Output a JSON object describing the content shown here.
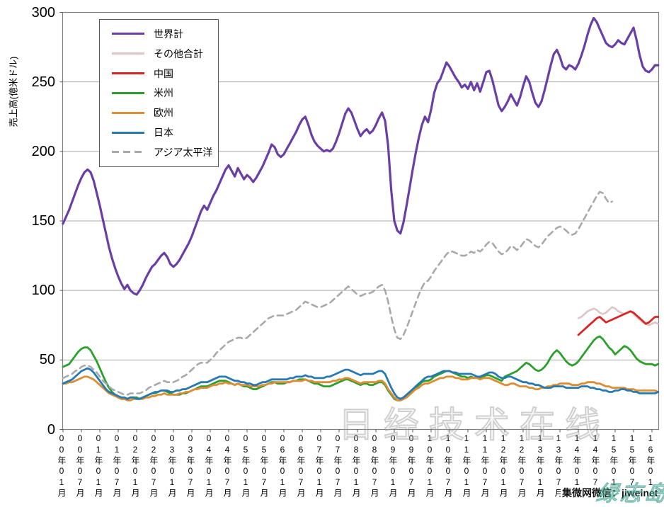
{
  "page": {
    "caption": "集微网微信：jiweinet",
    "watermark_main": "日经技术在线",
    "watermark_corner": "绿志岛"
  },
  "colors": {
    "spine": "#808080",
    "gridline": "#a8a8a8",
    "tick": "#595959",
    "world": "#6A3FA5",
    "others_total": "#DCC6C6",
    "china": "#DC2423",
    "americas": "#2CA02C",
    "europe": "#DD8D33",
    "japan": "#2679B2",
    "asia_pacific": "#A9A9A9"
  },
  "chart_data": {
    "type": "line",
    "title": "",
    "xlabel": "",
    "ylabel": "売上高(億米ドル)",
    "ylim": [
      0,
      300
    ],
    "y_ticks": [
      0,
      50,
      100,
      150,
      200,
      250,
      300
    ],
    "grid": "horizontal",
    "legend_position": "top-left",
    "x_unit": "month",
    "x_start": "2000-01",
    "months_per_tick": 6,
    "x_tick_labels": [
      "00年01月",
      "00年07月",
      "01年01月",
      "01年07月",
      "02年01月",
      "02年07月",
      "03年01月",
      "03年07月",
      "04年01月",
      "04年07月",
      "05年01月",
      "05年07月",
      "06年01月",
      "06年07月",
      "07年01月",
      "07年07月",
      "08年01月",
      "08年07月",
      "09年01月",
      "09年07月",
      "10年01月",
      "10年07月",
      "11年01月",
      "11年07月",
      "12年01月",
      "12年07月",
      "13年01月",
      "13年07月",
      "14年01月",
      "14年07月",
      "15年01月",
      "15年07月",
      "16年01月"
    ],
    "series": [
      {
        "id": "world",
        "label": "世界計",
        "color_key": "world",
        "width": 3.2,
        "dashed": false,
        "start_month": 0,
        "values": [
          148,
          153,
          158,
          164,
          170,
          176,
          181,
          185,
          187,
          185,
          179,
          170,
          161,
          151,
          141,
          131,
          123,
          116,
          110,
          105,
          101,
          104,
          100,
          98,
          97,
          100,
          104,
          109,
          113,
          117,
          119,
          122,
          125,
          127,
          124,
          119,
          117,
          119,
          122,
          126,
          130,
          134,
          139,
          145,
          151,
          157,
          161,
          158,
          163,
          168,
          172,
          177,
          182,
          187,
          190,
          186,
          182,
          188,
          184,
          180,
          183,
          181,
          178,
          181,
          185,
          189,
          194,
          199,
          205,
          203,
          198,
          196,
          198,
          202,
          206,
          210,
          214,
          219,
          223,
          225,
          219,
          212,
          207,
          204,
          202,
          200,
          201,
          200,
          202,
          207,
          213,
          220,
          227,
          231,
          228,
          222,
          216,
          211,
          214,
          216,
          213,
          215,
          219,
          224,
          228,
          222,
          204,
          172,
          150,
          143,
          141,
          149,
          161,
          174,
          187,
          199,
          210,
          219,
          225,
          221,
          230,
          242,
          249,
          252,
          258,
          264,
          261,
          257,
          253,
          250,
          246,
          248,
          245,
          250,
          244,
          249,
          243,
          250,
          257,
          258,
          251,
          242,
          233,
          229,
          232,
          236,
          241,
          237,
          233,
          239,
          247,
          254,
          250,
          242,
          235,
          232,
          236,
          244,
          253,
          262,
          270,
          273,
          268,
          261,
          259,
          262,
          261,
          259,
          263,
          269,
          276,
          284,
          291,
          296,
          293,
          288,
          283,
          278,
          276,
          275,
          277,
          280,
          278,
          277,
          281,
          285,
          289,
          280,
          269,
          261,
          258,
          257,
          259,
          262,
          262
        ]
      },
      {
        "id": "others-total",
        "label": "その他合計",
        "color_key": "others_total",
        "width": 2.6,
        "dashed": false,
        "start_month": 168,
        "values": [
          80,
          81,
          83,
          85,
          86,
          87,
          86,
          84,
          83,
          84,
          86,
          88,
          87,
          85,
          84,
          83,
          84,
          85,
          83,
          81,
          79,
          77,
          76,
          75,
          76,
          77,
          76
        ]
      },
      {
        "id": "china",
        "label": "中国",
        "color_key": "china",
        "width": 2.8,
        "dashed": false,
        "start_month": 168,
        "values": [
          68,
          70,
          72,
          74,
          76,
          78,
          80,
          81,
          79,
          77,
          78,
          79,
          80,
          81,
          82,
          83,
          84,
          85,
          84,
          82,
          80,
          78,
          76,
          77,
          79,
          81,
          81
        ]
      },
      {
        "id": "americas",
        "label": "米州",
        "color_key": "americas",
        "width": 2.8,
        "dashed": false,
        "start_month": 0,
        "values": [
          45,
          46,
          47,
          50,
          53,
          56,
          58,
          59,
          59,
          57,
          53,
          49,
          44,
          39,
          34,
          30,
          27,
          25,
          23,
          22,
          22,
          22,
          23,
          23,
          23,
          22,
          23,
          24,
          25,
          26,
          26,
          27,
          28,
          28,
          27,
          26,
          25,
          25,
          25,
          26,
          26,
          27,
          28,
          29,
          30,
          31,
          31,
          31,
          32,
          33,
          34,
          35,
          35,
          35,
          34,
          33,
          32,
          33,
          32,
          31,
          31,
          30,
          29,
          29,
          30,
          31,
          32,
          33,
          34,
          34,
          33,
          33,
          33,
          34,
          34,
          35,
          35,
          36,
          36,
          36,
          35,
          34,
          33,
          33,
          32,
          31,
          31,
          31,
          32,
          33,
          34,
          35,
          36,
          36,
          35,
          34,
          33,
          32,
          33,
          33,
          32,
          32,
          33,
          34,
          34,
          32,
          28,
          25,
          22,
          21,
          21,
          22,
          24,
          26,
          28,
          30,
          32,
          34,
          35,
          35,
          36,
          38,
          39,
          40,
          41,
          42,
          42,
          41,
          40,
          39,
          38,
          38,
          37,
          38,
          37,
          38,
          37,
          38,
          39,
          39,
          38,
          37,
          36,
          35,
          38,
          39,
          40,
          41,
          42,
          44,
          46,
          48,
          47,
          45,
          43,
          42,
          43,
          45,
          48,
          52,
          55,
          57,
          55,
          52,
          49,
          47,
          46,
          47,
          49,
          52,
          55,
          58,
          61,
          64,
          66,
          67,
          65,
          62,
          59,
          57,
          54,
          56,
          58,
          60,
          59,
          57,
          54,
          51,
          49,
          48,
          47,
          47,
          47,
          46,
          47
        ]
      },
      {
        "id": "europe",
        "label": "欧州",
        "color_key": "europe",
        "width": 2.8,
        "dashed": false,
        "start_month": 0,
        "values": [
          33,
          33,
          34,
          34,
          35,
          36,
          37,
          38,
          38,
          37,
          36,
          34,
          32,
          30,
          28,
          26,
          25,
          24,
          23,
          22,
          22,
          21,
          21,
          22,
          22,
          22,
          22,
          23,
          23,
          24,
          24,
          25,
          25,
          26,
          25,
          25,
          25,
          25,
          26,
          26,
          27,
          27,
          28,
          29,
          29,
          30,
          30,
          30,
          31,
          32,
          32,
          33,
          33,
          34,
          33,
          33,
          32,
          33,
          32,
          32,
          32,
          31,
          31,
          31,
          31,
          32,
          32,
          33,
          33,
          34,
          34,
          34,
          34,
          34,
          34,
          35,
          35,
          35,
          35,
          36,
          35,
          35,
          34,
          34,
          34,
          34,
          34,
          34,
          35,
          35,
          36,
          36,
          37,
          37,
          36,
          35,
          34,
          33,
          34,
          34,
          34,
          34,
          34,
          35,
          35,
          33,
          29,
          26,
          23,
          21,
          21,
          22,
          23,
          25,
          27,
          29,
          30,
          32,
          33,
          33,
          34,
          35,
          36,
          37,
          37,
          38,
          38,
          38,
          37,
          37,
          36,
          36,
          36,
          37,
          37,
          37,
          36,
          37,
          37,
          37,
          36,
          35,
          34,
          33,
          32,
          32,
          33,
          33,
          32,
          31,
          31,
          31,
          30,
          30,
          29,
          29,
          30,
          30,
          31,
          31,
          32,
          32,
          33,
          33,
          33,
          33,
          32,
          32,
          32,
          33,
          33,
          34,
          34,
          34,
          33,
          33,
          32,
          31,
          31,
          30,
          30,
          30,
          30,
          30,
          29,
          29,
          29,
          28,
          28,
          28,
          28,
          28,
          28,
          28,
          27
        ]
      },
      {
        "id": "japan",
        "label": "日本",
        "color_key": "japan",
        "width": 2.8,
        "dashed": false,
        "start_month": 0,
        "values": [
          33,
          34,
          35,
          36,
          38,
          40,
          42,
          43,
          44,
          43,
          41,
          38,
          35,
          32,
          29,
          27,
          26,
          25,
          24,
          23,
          23,
          22,
          23,
          23,
          22,
          22,
          23,
          24,
          25,
          26,
          27,
          27,
          28,
          28,
          28,
          27,
          27,
          28,
          28,
          29,
          29,
          30,
          31,
          32,
          33,
          34,
          34,
          34,
          35,
          36,
          37,
          38,
          38,
          38,
          37,
          36,
          35,
          35,
          34,
          34,
          33,
          33,
          32,
          32,
          33,
          34,
          34,
          35,
          36,
          36,
          36,
          36,
          36,
          36,
          37,
          37,
          38,
          38,
          38,
          39,
          38,
          38,
          37,
          37,
          37,
          37,
          38,
          38,
          39,
          40,
          41,
          42,
          43,
          43,
          42,
          41,
          40,
          39,
          40,
          40,
          40,
          40,
          41,
          42,
          42,
          40,
          35,
          30,
          26,
          23,
          22,
          23,
          25,
          27,
          29,
          31,
          33,
          35,
          37,
          38,
          38,
          39,
          40,
          41,
          42,
          42,
          42,
          41,
          41,
          40,
          40,
          40,
          40,
          40,
          39,
          38,
          38,
          39,
          40,
          41,
          41,
          40,
          38,
          37,
          37,
          38,
          38,
          37,
          36,
          35,
          34,
          34,
          33,
          33,
          32,
          32,
          31,
          30,
          30,
          30,
          31,
          31,
          31,
          31,
          30,
          30,
          30,
          30,
          30,
          31,
          31,
          31,
          30,
          30,
          29,
          29,
          28,
          28,
          27,
          27,
          28,
          28,
          29,
          29,
          28,
          28,
          27,
          27,
          26,
          26,
          26,
          26,
          26,
          26,
          27
        ]
      },
      {
        "id": "asia-pacific",
        "label": "アジア太平洋",
        "color_key": "asia_pacific",
        "width": 2.6,
        "dashed": true,
        "start_month": 0,
        "values": [
          37,
          38,
          39,
          40,
          42,
          43,
          45,
          46,
          46,
          45,
          43,
          41,
          38,
          35,
          33,
          31,
          29,
          28,
          27,
          26,
          25,
          25,
          26,
          26,
          26,
          26,
          27,
          28,
          30,
          31,
          32,
          33,
          34,
          35,
          34,
          34,
          34,
          35,
          36,
          38,
          39,
          41,
          43,
          45,
          47,
          48,
          48,
          48,
          50,
          52,
          55,
          57,
          59,
          61,
          63,
          64,
          65,
          66,
          66,
          65,
          66,
          68,
          70,
          72,
          74,
          76,
          78,
          80,
          81,
          82,
          82,
          82,
          82,
          83,
          84,
          85,
          86,
          88,
          90,
          92,
          91,
          90,
          89,
          88,
          88,
          89,
          90,
          91,
          93,
          95,
          97,
          99,
          101,
          103,
          101,
          99,
          97,
          96,
          97,
          98,
          98,
          99,
          101,
          103,
          104,
          100,
          92,
          81,
          72,
          66,
          65,
          68,
          73,
          79,
          85,
          91,
          97,
          102,
          106,
          107,
          110,
          114,
          117,
          120,
          123,
          126,
          128,
          128,
          127,
          126,
          125,
          125,
          126,
          128,
          127,
          129,
          128,
          130,
          133,
          135,
          134,
          131,
          128,
          126,
          127,
          129,
          132,
          131,
          129,
          131,
          134,
          137,
          136,
          134,
          132,
          131,
          133,
          136,
          139,
          141,
          143,
          145,
          146,
          145,
          143,
          141,
          140,
          141,
          144,
          148,
          152,
          156,
          160,
          164,
          168,
          171,
          170,
          166,
          163,
          164
        ]
      }
    ]
  }
}
